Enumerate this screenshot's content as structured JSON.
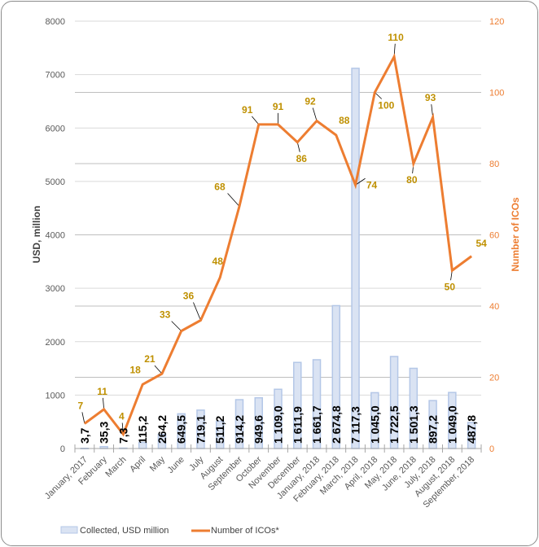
{
  "chart_data": {
    "type": "bar+line",
    "title": "",
    "categories": [
      "January, 2017",
      "February",
      "March",
      "April",
      "May",
      "June",
      "July",
      "August",
      "September",
      "October",
      "November",
      "December",
      "January, 2018",
      "February, 2018",
      "March, 2018",
      "April, 2018",
      "May, 2018",
      "June, 2018",
      "July, 2018",
      "August, 2018",
      "September, 2018"
    ],
    "series": [
      {
        "name": "Collected, USD million",
        "type": "bar",
        "axis": "left",
        "values": [
          3.7,
          35.3,
          7.3,
          115.2,
          264.2,
          649.5,
          719.1,
          511.2,
          914.2,
          949.6,
          1109.0,
          1611.9,
          1661.7,
          2674.8,
          7117.3,
          1045.0,
          1722.5,
          1501.3,
          897.2,
          1049.0,
          487.8
        ],
        "labels": [
          "3,7",
          "35,3",
          "7,3",
          "115,2",
          "264,2",
          "649,5",
          "719,1",
          "511,2",
          "914,2",
          "949,6",
          "1 109,0",
          "1 611,9",
          "1 661,7",
          "2 674,8",
          "7 117,3",
          "1 045,0",
          "1 722,5",
          "1 501,3",
          "897,2",
          "1 049,0",
          "487,8"
        ],
        "color": "#dae3f3",
        "border_color": "#b4c7e7"
      },
      {
        "name": "Number of ICOs*",
        "type": "line",
        "axis": "right",
        "values": [
          7,
          11,
          4,
          18,
          21,
          33,
          36,
          48,
          68,
          91,
          91,
          86,
          92,
          88,
          74,
          100,
          110,
          80,
          93,
          50,
          54
        ],
        "color": "#ed7d31",
        "label_color": "#bf9000"
      }
    ],
    "ylabel": "USD, million",
    "ylim": [
      0,
      8000
    ],
    "yticks": [
      0,
      1000,
      2000,
      3000,
      4000,
      5000,
      6000,
      7000,
      8000
    ],
    "y2label": "Number of ICOs",
    "y2lim": [
      0,
      120
    ],
    "y2ticks": [
      0,
      20,
      40,
      60,
      80,
      100,
      120
    ],
    "grid": true,
    "legend": "bottom"
  }
}
